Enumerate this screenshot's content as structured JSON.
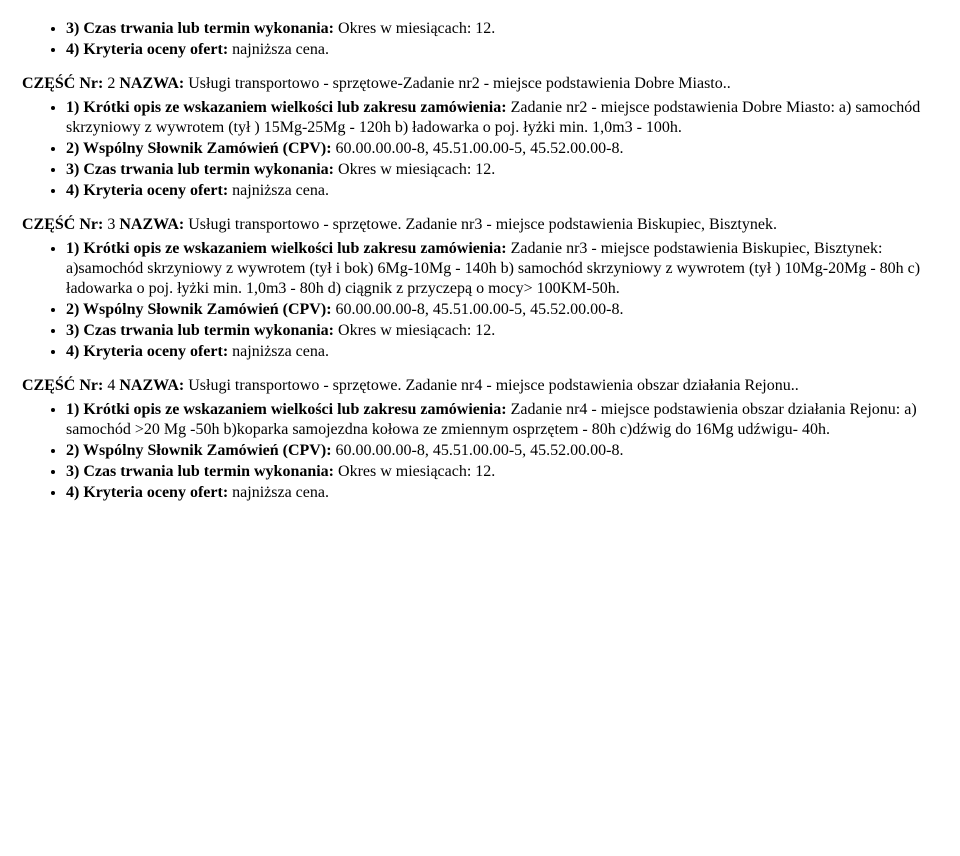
{
  "sec2_top": {
    "li1_b": "3) Czas trwania lub termin wykonania:",
    "li1_t": " Okres w miesiącach: 12.",
    "li2_b": "4) Kryteria oceny ofert: ",
    "li2_t": "najniższa cena."
  },
  "sec2_heading": {
    "b": "CZĘŚĆ Nr:",
    "t1": " 2 ",
    "b2": "NAZWA:",
    "t2": " Usługi transportowo - sprzętowe-Zadanie nr2 - miejsce podstawienia Dobre Miasto.."
  },
  "sec2_list": {
    "li1_b": "1) Krótki opis ze wskazaniem wielkości lub zakresu zamówienia:",
    "li1_t": " Zadanie nr2 - miejsce podstawienia Dobre Miasto: a) samochód skrzyniowy z wywrotem (tył ) 15Mg-25Mg - 120h b) ładowarka o poj. łyżki min. 1,0m3 - 100h.",
    "li2_b": "2) Wspólny Słownik Zamówień (CPV):",
    "li2_t": " 60.00.00.00-8, 45.51.00.00-5, 45.52.00.00-8.",
    "li3_b": "3) Czas trwania lub termin wykonania:",
    "li3_t": " Okres w miesiącach: 12.",
    "li4_b": "4) Kryteria oceny ofert: ",
    "li4_t": "najniższa cena."
  },
  "sec3_heading": {
    "b": "CZĘŚĆ Nr:",
    "t1": " 3 ",
    "b2": "NAZWA:",
    "t2": " Usługi transportowo - sprzętowe. Zadanie nr3 - miejsce podstawienia Biskupiec, Bisztynek."
  },
  "sec3_list": {
    "li1_b": "1) Krótki opis ze wskazaniem wielkości lub zakresu zamówienia:",
    "li1_t": " Zadanie nr3 - miejsce podstawienia Biskupiec, Bisztynek: a)samochód skrzyniowy z wywrotem (tył i bok) 6Mg-10Mg - 140h b) samochód skrzyniowy z wywrotem (tył ) 10Mg-20Mg - 80h c) ładowarka o poj. łyżki min. 1,0m3 - 80h d) ciągnik z przyczepą o mocy> 100KM-50h.",
    "li2_b": "2) Wspólny Słownik Zamówień (CPV):",
    "li2_t": " 60.00.00.00-8, 45.51.00.00-5, 45.52.00.00-8.",
    "li3_b": "3) Czas trwania lub termin wykonania:",
    "li3_t": " Okres w miesiącach: 12.",
    "li4_b": "4) Kryteria oceny ofert: ",
    "li4_t": "najniższa cena."
  },
  "sec4_heading": {
    "b": "CZĘŚĆ Nr:",
    "t1": " 4 ",
    "b2": "NAZWA:",
    "t2": " Usługi transportowo - sprzętowe. Zadanie nr4 - miejsce podstawienia obszar działania Rejonu.."
  },
  "sec4_list": {
    "li1_b": "1) Krótki opis ze wskazaniem wielkości lub zakresu zamówienia:",
    "li1_t": " Zadanie nr4 - miejsce podstawienia obszar działania Rejonu: a) samochód >20 Mg -50h b)koparka samojezdna kołowa ze zmiennym osprzętem - 80h c)dźwig do 16Mg udźwigu- 40h.",
    "li2_b": "2) Wspólny Słownik Zamówień (CPV):",
    "li2_t": " 60.00.00.00-8, 45.51.00.00-5, 45.52.00.00-8.",
    "li3_b": "3) Czas trwania lub termin wykonania:",
    "li3_t": " Okres w miesiącach: 12.",
    "li4_b": "4) Kryteria oceny ofert: ",
    "li4_t": "najniższa cena."
  }
}
